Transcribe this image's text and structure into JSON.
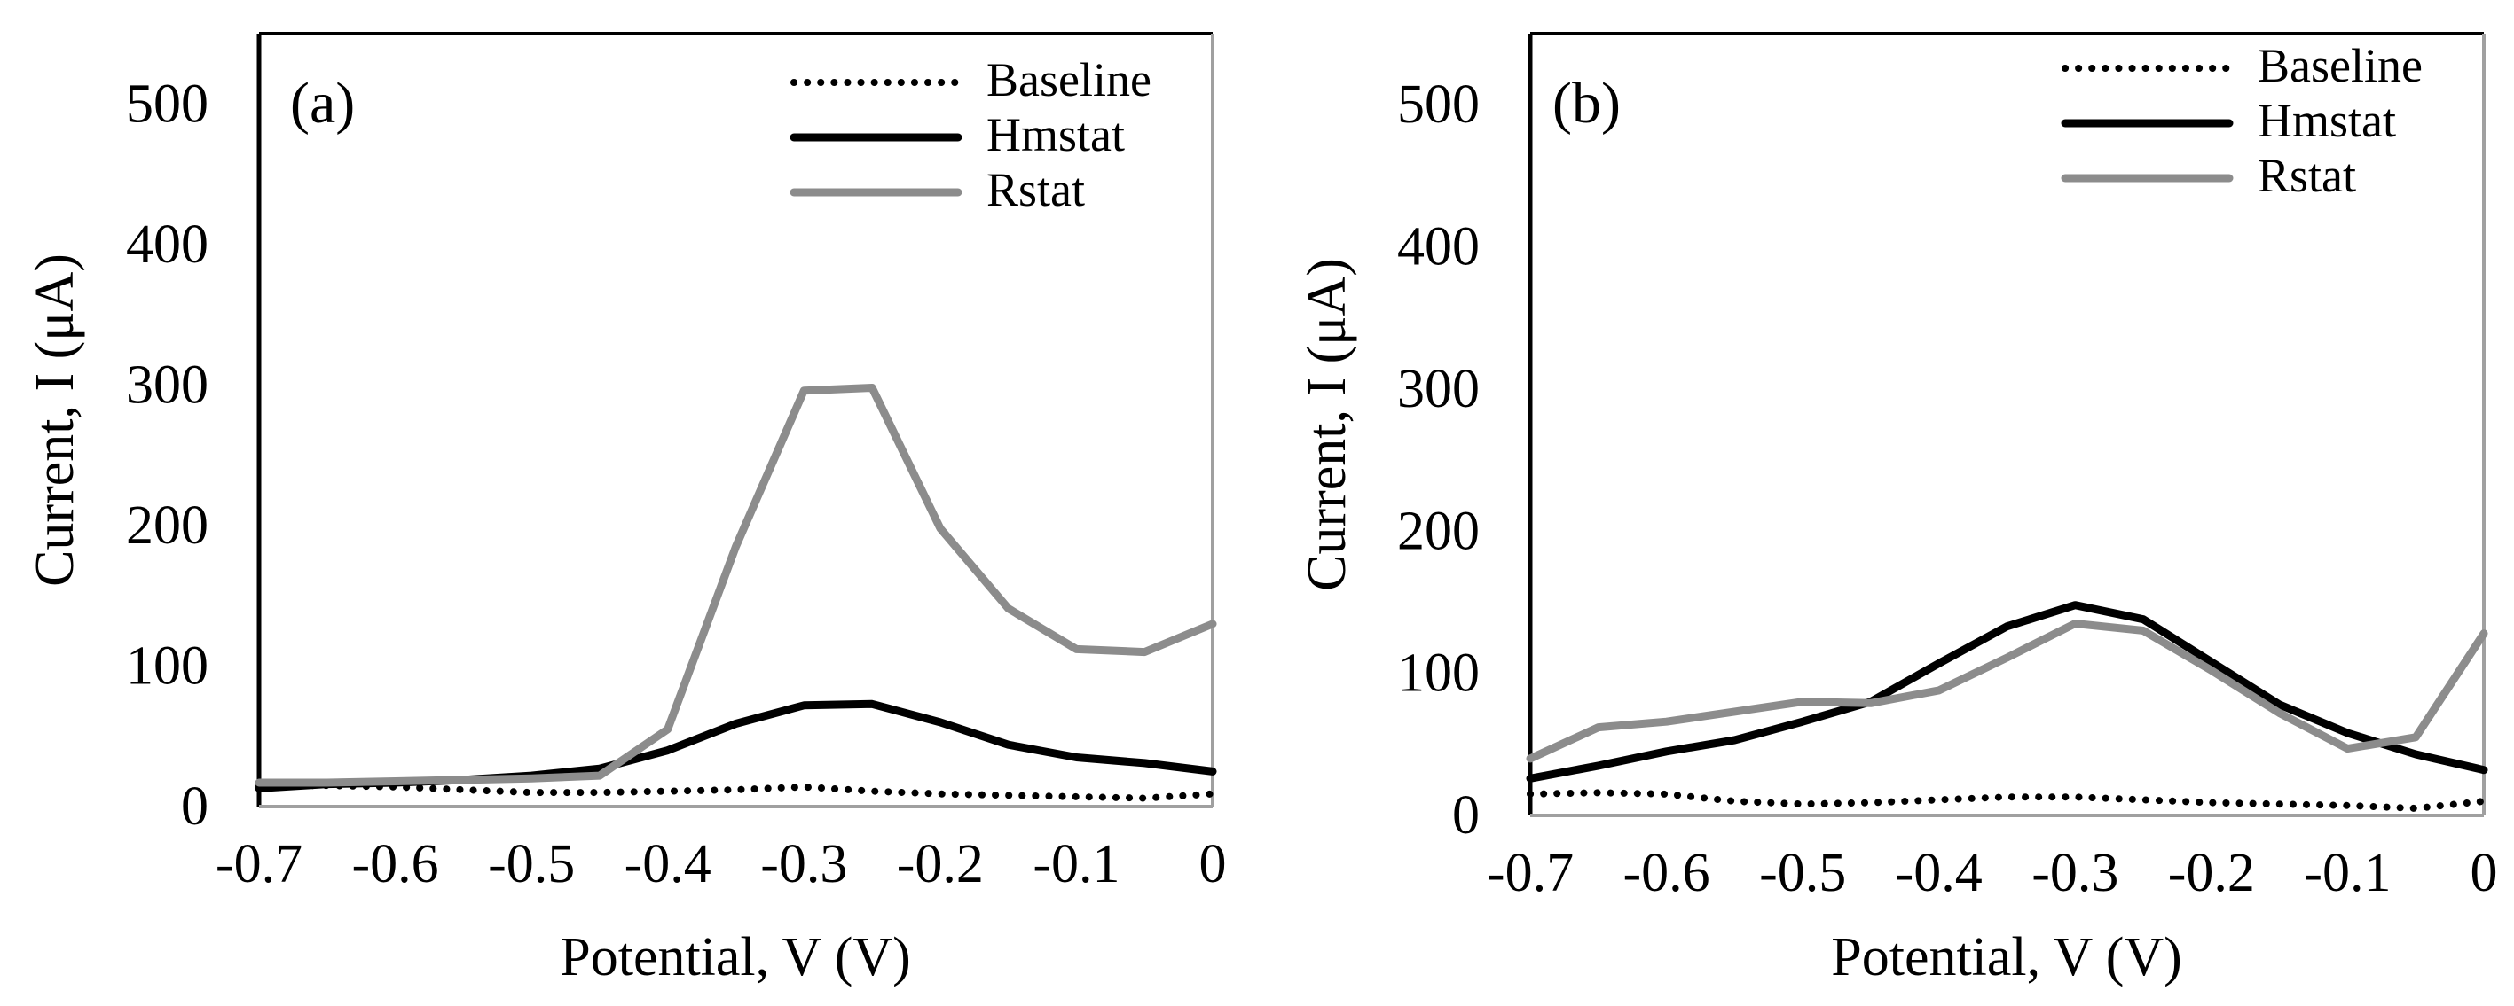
{
  "chart_data": [
    {
      "type": "line",
      "panel_label": "(a)",
      "xlabel": "Potential, V (V)",
      "ylabel": "Current, I (μA)",
      "xlim": [
        -0.7,
        0
      ],
      "ylim": [
        0,
        550
      ],
      "xticks": [
        "-0.7",
        "-0.6",
        "-0.5",
        "-0.4",
        "-0.3",
        "-0.2",
        "-0.1",
        "0"
      ],
      "yticks": [
        "0",
        "100",
        "200",
        "300",
        "400",
        "500"
      ],
      "legend_position": "top-right",
      "series": [
        {
          "name": "Baseline",
          "style": "dotted",
          "color": "#000000",
          "x": [
            -0.7,
            -0.65,
            -0.6,
            -0.55,
            -0.5,
            -0.45,
            -0.4,
            -0.35,
            -0.3,
            -0.25,
            -0.2,
            -0.15,
            -0.1,
            -0.05,
            0
          ],
          "y": [
            15,
            15,
            14,
            12,
            10,
            10,
            11,
            12,
            14,
            11,
            9,
            8,
            7,
            6,
            9
          ]
        },
        {
          "name": "Hmstat",
          "style": "solid",
          "color": "#000000",
          "x": [
            -0.7,
            -0.65,
            -0.6,
            -0.55,
            -0.5,
            -0.45,
            -0.4,
            -0.35,
            -0.3,
            -0.25,
            -0.2,
            -0.15,
            -0.1,
            -0.05,
            0
          ],
          "y": [
            13,
            16,
            17,
            19,
            22,
            27,
            40,
            59,
            72,
            73,
            60,
            44,
            35,
            31,
            25
          ]
        },
        {
          "name": "Rstat",
          "style": "solid",
          "color": "#8c8c8c",
          "x": [
            -0.7,
            -0.65,
            -0.6,
            -0.55,
            -0.5,
            -0.45,
            -0.4,
            -0.35,
            -0.3,
            -0.25,
            -0.2,
            -0.15,
            -0.1,
            -0.05,
            0
          ],
          "y": [
            17,
            17,
            18,
            19,
            20,
            22,
            55,
            185,
            296,
            298,
            198,
            141,
            112,
            110,
            130
          ]
        }
      ]
    },
    {
      "type": "line",
      "panel_label": "(b)",
      "xlabel": "Potential, V (V)",
      "ylabel": "Current, I (μA)",
      "xlim": [
        -0.7,
        0
      ],
      "ylim": [
        0,
        550
      ],
      "xticks": [
        "-0.7",
        "-0.6",
        "-0.5",
        "-0.4",
        "-0.3",
        "-0.2",
        "-0.1",
        "0"
      ],
      "yticks": [
        "0",
        "100",
        "200",
        "300",
        "400",
        "500"
      ],
      "legend_position": "top-right",
      "series": [
        {
          "name": "Baseline",
          "style": "dotted",
          "color": "#000000",
          "x": [
            -0.7,
            -0.65,
            -0.6,
            -0.55,
            -0.5,
            -0.45,
            -0.4,
            -0.35,
            -0.3,
            -0.25,
            -0.2,
            -0.15,
            -0.1,
            -0.05,
            0
          ],
          "y": [
            15,
            16,
            15,
            10,
            8,
            9,
            11,
            13,
            13,
            11,
            9,
            8,
            7,
            5,
            10
          ]
        },
        {
          "name": "Hmstat",
          "style": "solid",
          "color": "#000000",
          "x": [
            -0.7,
            -0.65,
            -0.6,
            -0.55,
            -0.5,
            -0.45,
            -0.4,
            -0.35,
            -0.3,
            -0.25,
            -0.2,
            -0.15,
            -0.1,
            -0.05,
            0
          ],
          "y": [
            26,
            35,
            45,
            53,
            66,
            80,
            107,
            133,
            148,
            138,
            108,
            78,
            58,
            43,
            32
          ]
        },
        {
          "name": "Rstat",
          "style": "solid",
          "color": "#8c8c8c",
          "x": [
            -0.7,
            -0.65,
            -0.6,
            -0.55,
            -0.5,
            -0.45,
            -0.4,
            -0.35,
            -0.3,
            -0.25,
            -0.2,
            -0.15,
            -0.1,
            -0.05,
            0
          ],
          "y": [
            40,
            62,
            66,
            73,
            80,
            79,
            88,
            111,
            135,
            130,
            102,
            72,
            47,
            55,
            128
          ]
        }
      ]
    }
  ]
}
